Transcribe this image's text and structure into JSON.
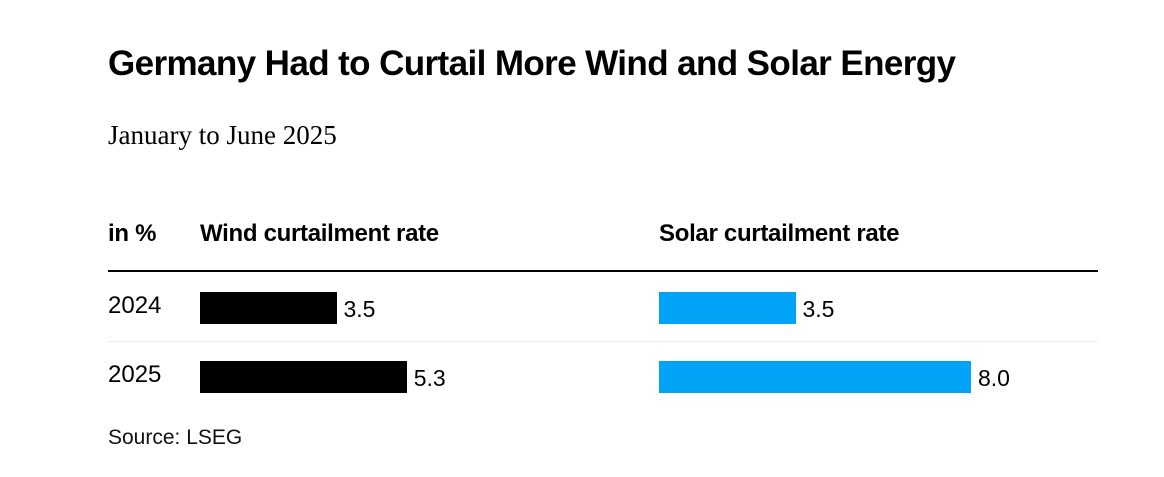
{
  "chart_data": {
    "type": "bar",
    "orientation": "horizontal",
    "title": "Germany Had to Curtail More Wind and Solar Energy",
    "subtitle": "January to June 2025",
    "unit_label": "in %",
    "categories": [
      "2024",
      "2025"
    ],
    "series": [
      {
        "name": "Wind curtailment rate",
        "values": [
          3.5,
          5.3
        ],
        "color": "#000000"
      },
      {
        "name": "Solar curtailment rate",
        "values": [
          3.5,
          8.0
        ],
        "color": "#00a3f5"
      }
    ],
    "value_labels": {
      "wind": [
        "3.5",
        "5.3"
      ],
      "solar": [
        "3.5",
        "8.0"
      ]
    },
    "grid": false,
    "source": "Source: LSEG"
  }
}
